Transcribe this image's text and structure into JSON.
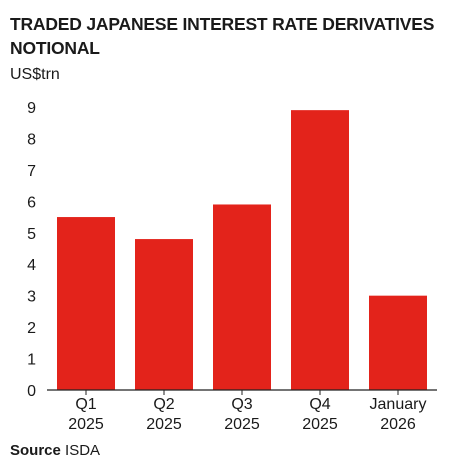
{
  "title": "TRADED JAPANESE INTEREST RATE DERIVATIVES NOTIONAL",
  "source_label": "Source",
  "source_value": "ISDA",
  "colors": {
    "bar": "#e3231b",
    "axis": "#222222",
    "text": "#1a1a1a"
  },
  "chart_data": {
    "type": "bar",
    "title": "TRADED JAPANESE INTEREST RATE DERIVATIVES NOTIONAL",
    "ylabel": "US$trn",
    "xlabel": "",
    "categories": [
      [
        "Q1",
        "2025"
      ],
      [
        "Q2",
        "2025"
      ],
      [
        "Q3",
        "2025"
      ],
      [
        "Q4",
        "2025"
      ],
      [
        "January",
        "2026"
      ]
    ],
    "values": [
      5.5,
      4.8,
      5.9,
      8.9,
      3.0
    ],
    "ylim": [
      0,
      9
    ],
    "yticks": [
      0,
      1,
      2,
      3,
      4,
      5,
      6,
      7,
      8,
      9
    ],
    "grid": false
  }
}
